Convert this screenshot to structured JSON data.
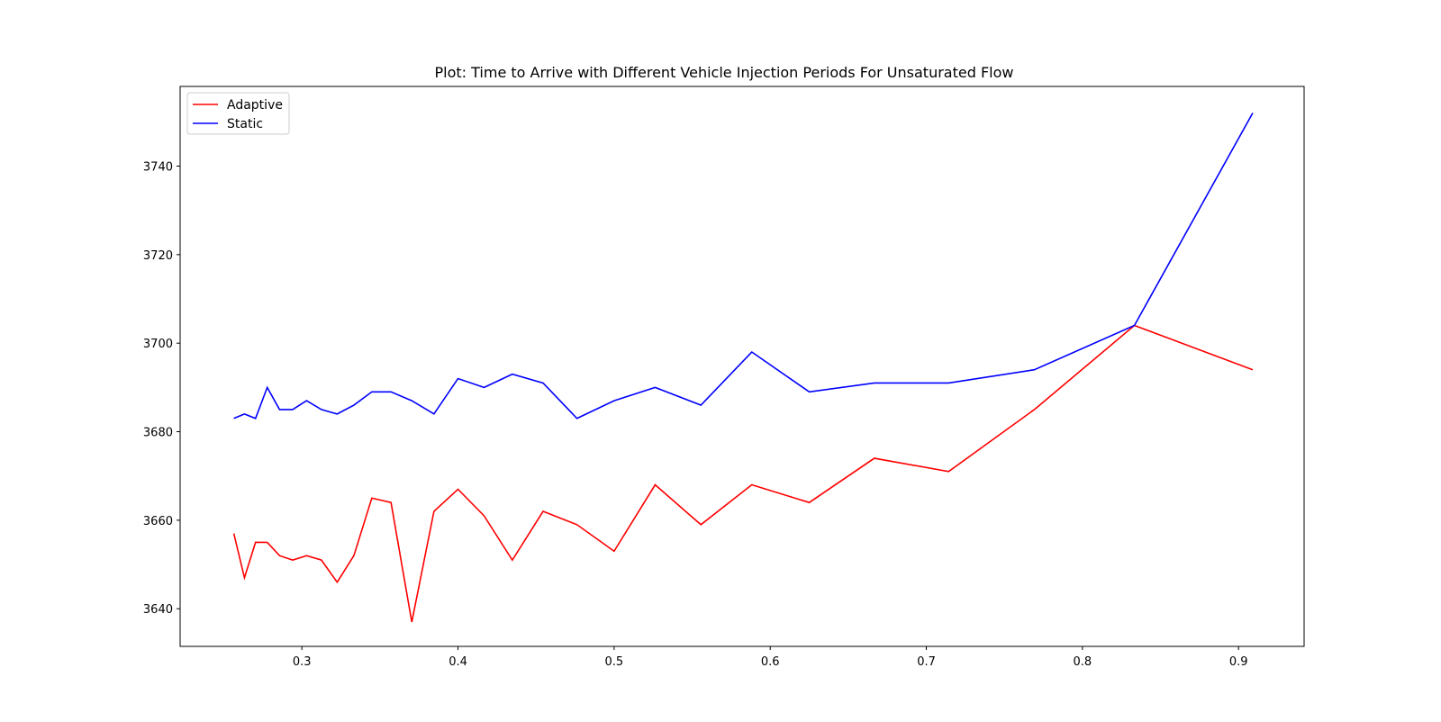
{
  "chart_data": {
    "type": "line",
    "title": "Plot: Time to Arrive with Different Vehicle Injection Periods For Unsaturated Flow",
    "xlabel": "",
    "ylabel": "",
    "xlim": [
      0.222,
      0.942
    ],
    "ylim": [
      3631.5,
      3758
    ],
    "xticks": [
      0.3,
      0.4,
      0.5,
      0.6,
      0.7,
      0.8,
      0.9
    ],
    "xtick_labels": [
      "0.3",
      "0.4",
      "0.5",
      "0.6",
      "0.7",
      "0.8",
      "0.9"
    ],
    "yticks": [
      3640,
      3660,
      3680,
      3700,
      3720,
      3740
    ],
    "ytick_labels": [
      "3640",
      "3660",
      "3680",
      "3700",
      "3720",
      "3740"
    ],
    "grid": false,
    "legend_position": "top-left",
    "x": [
      0.2564,
      0.2632,
      0.2703,
      0.2778,
      0.2857,
      0.2941,
      0.303,
      0.3125,
      0.3226,
      0.3333,
      0.3448,
      0.3571,
      0.3704,
      0.3846,
      0.4,
      0.4167,
      0.4348,
      0.4545,
      0.4762,
      0.5,
      0.5263,
      0.5556,
      0.5882,
      0.625,
      0.6667,
      0.7143,
      0.7692,
      0.8333,
      0.9091
    ],
    "series": [
      {
        "name": "Adaptive",
        "color": "#ff0000",
        "values": [
          3657,
          3647,
          3655,
          3655,
          3652,
          3651,
          3652,
          3651,
          3646,
          3652,
          3665,
          3664,
          3637,
          3662,
          3667,
          3661,
          3651,
          3662,
          3659,
          3653,
          3668,
          3659,
          3668,
          3664,
          3674,
          3671,
          3685,
          3704,
          3694
        ]
      },
      {
        "name": "Static",
        "color": "#0000ff",
        "values": [
          3683,
          3684,
          3683,
          3690,
          3685,
          3685,
          3687,
          3685,
          3684,
          3686,
          3689,
          3689,
          3687,
          3684,
          3692,
          3690,
          3693,
          3691,
          3683,
          3687,
          3690,
          3686,
          3698,
          3689,
          3691,
          3691,
          3694,
          3704,
          3752
        ]
      }
    ]
  }
}
